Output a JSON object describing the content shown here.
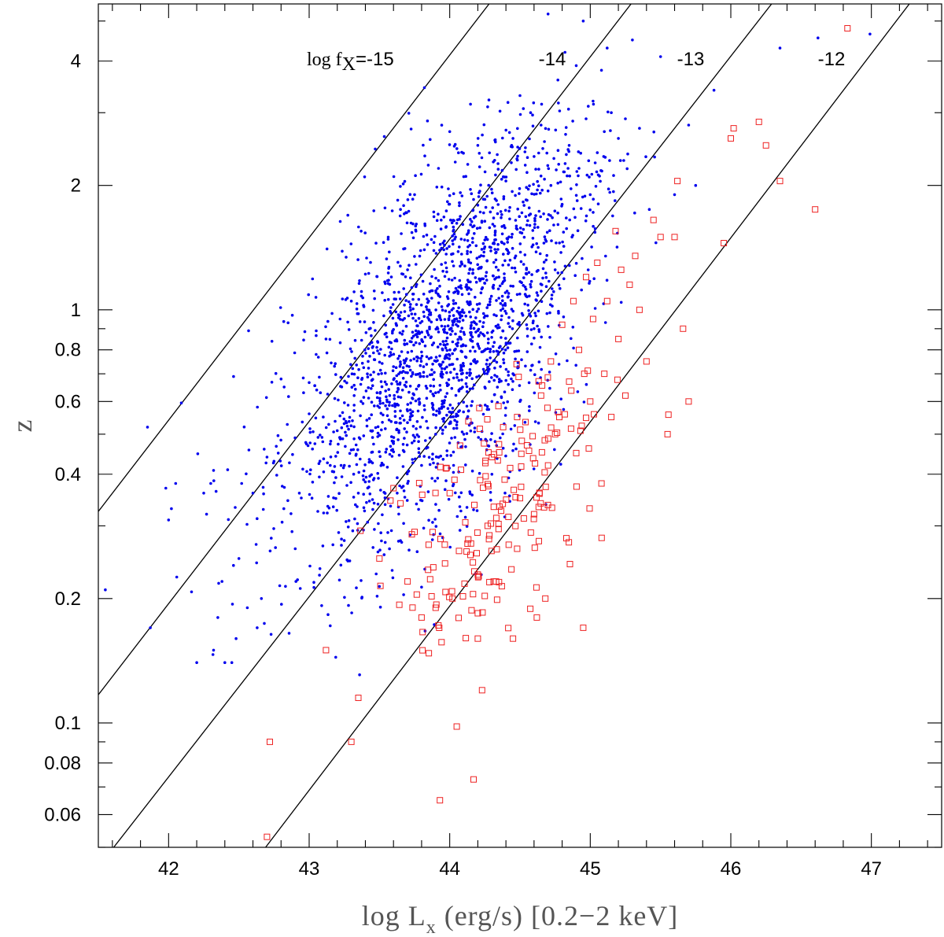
{
  "chart_data": {
    "type": "scatter",
    "title": "",
    "xlabel": {
      "main": "log L",
      "sub": "x",
      "rest": " (erg/s) [0.2−2 keV]"
    },
    "ylabel": "z",
    "xlim": [
      41.5,
      47.5
    ],
    "ylim": [
      0.05,
      5.5
    ],
    "yscale": "log",
    "grid": false,
    "x_ticks": [
      42,
      43,
      44,
      45,
      46,
      47
    ],
    "x_tick_labels": [
      "42",
      "43",
      "44",
      "45",
      "46",
      "47"
    ],
    "y_ticks": [
      0.06,
      0.08,
      0.1,
      0.2,
      0.4,
      0.6,
      0.8,
      1,
      2,
      4
    ],
    "y_tick_labels": [
      "0.06",
      "0.08",
      "0.1",
      "0.2",
      "0.4",
      "0.6",
      "0.8",
      "1",
      "2",
      "4"
    ],
    "flux_lines": [
      {
        "label_prefix": "log f",
        "label_sub": "X",
        "label": "=-15",
        "points": [
          [
            41.5,
            0.325
          ],
          [
            44.28,
            5.5
          ]
        ]
      },
      {
        "label": "-14",
        "points": [
          [
            41.5,
            0.117
          ],
          [
            45.29,
            5.5
          ]
        ]
      },
      {
        "label": "-13",
        "points": [
          [
            41.5,
            0.0448
          ],
          [
            46.29,
            5.5
          ]
        ]
      },
      {
        "label": "-12",
        "points": [
          [
            42.69,
            0.05
          ],
          [
            47.27,
            5.5
          ]
        ]
      }
    ],
    "series": [
      {
        "marker": "dot",
        "color": "#0000ee",
        "note": "points representative of dense cloud (values estimated)",
        "points": [
          [
            41.55,
            0.21
          ],
          [
            41.85,
            0.52
          ],
          [
            41.87,
            0.17
          ],
          [
            41.98,
            0.37
          ],
          [
            42.0,
            0.31
          ],
          [
            42.02,
            0.33
          ],
          [
            42.05,
            0.38
          ],
          [
            42.2,
            0.14
          ],
          [
            42.25,
            0.36
          ],
          [
            42.27,
            0.32
          ],
          [
            42.3,
            0.38
          ],
          [
            42.32,
            0.15
          ],
          [
            42.35,
            0.18
          ],
          [
            42.38,
            0.22
          ],
          [
            42.4,
            0.14
          ],
          [
            42.42,
            0.41
          ],
          [
            42.45,
            0.14
          ],
          [
            42.48,
            0.16
          ],
          [
            42.5,
            0.25
          ],
          [
            42.52,
            0.38
          ],
          [
            42.56,
            0.19
          ],
          [
            42.6,
            0.36
          ],
          [
            42.63,
            0.17
          ],
          [
            42.66,
            0.2
          ],
          [
            42.68,
            0.46
          ],
          [
            42.7,
            0.44
          ],
          [
            42.73,
            0.28
          ],
          [
            42.75,
            0.43
          ],
          [
            42.78,
            0.45
          ],
          [
            42.8,
            0.68
          ],
          [
            42.82,
            0.33
          ],
          [
            42.85,
            0.93
          ],
          [
            42.88,
            0.97
          ],
          [
            42.9,
            0.49
          ],
          [
            42.93,
            0.36
          ],
          [
            42.96,
            0.63
          ],
          [
            43.0,
            0.56
          ],
          [
            43.02,
            0.35
          ],
          [
            43.05,
            0.78
          ],
          [
            43.08,
            0.63
          ],
          [
            43.1,
            0.55
          ],
          [
            43.12,
            0.85
          ],
          [
            43.15,
            0.42
          ],
          [
            43.18,
            0.73
          ],
          [
            43.2,
            0.51
          ],
          [
            43.22,
            0.95
          ],
          [
            43.25,
            0.42
          ],
          [
            43.28,
            0.69
          ],
          [
            43.3,
            1.05
          ],
          [
            43.32,
            0.62
          ],
          [
            43.35,
            0.36
          ],
          [
            43.37,
            1.55
          ],
          [
            43.4,
            1.22
          ],
          [
            43.42,
            0.75
          ],
          [
            43.45,
            0.81
          ],
          [
            43.47,
            2.45
          ],
          [
            43.5,
            0.58
          ],
          [
            43.52,
            1.1
          ],
          [
            43.55,
            0.66
          ],
          [
            43.57,
            1.38
          ],
          [
            43.6,
            0.48
          ],
          [
            43.62,
            0.92
          ],
          [
            43.65,
            1.75
          ],
          [
            43.67,
            0.71
          ],
          [
            43.7,
            1.25
          ],
          [
            43.72,
            0.55
          ],
          [
            43.75,
            1.9
          ],
          [
            43.77,
            0.86
          ],
          [
            43.8,
            0.42
          ],
          [
            43.82,
            3.45
          ],
          [
            43.85,
            1.05
          ],
          [
            43.87,
            1.48
          ],
          [
            43.9,
            0.63
          ],
          [
            43.92,
            2.2
          ],
          [
            43.95,
            0.8
          ],
          [
            43.97,
            1.3
          ],
          [
            44.0,
            2.7
          ],
          [
            44.02,
            0.94
          ],
          [
            44.05,
            1.62
          ],
          [
            44.07,
            0.57
          ],
          [
            44.1,
            2.1
          ],
          [
            44.12,
            1.15
          ],
          [
            44.15,
            0.74
          ],
          [
            44.17,
            1.85
          ],
          [
            44.2,
            2.5
          ],
          [
            44.22,
            0.88
          ],
          [
            44.25,
            1.42
          ],
          [
            44.27,
            3.1
          ],
          [
            44.3,
            0.6
          ],
          [
            44.32,
            2.3
          ],
          [
            44.35,
            1.2
          ],
          [
            44.37,
            1.7
          ],
          [
            44.4,
            2.05
          ],
          [
            44.42,
            0.83
          ],
          [
            44.45,
            2.6
          ],
          [
            44.47,
            1.35
          ],
          [
            44.5,
            3.3
          ],
          [
            44.52,
            0.97
          ],
          [
            44.55,
            2.15
          ],
          [
            44.57,
            1.6
          ],
          [
            44.6,
            2.35
          ],
          [
            44.62,
            1.1
          ],
          [
            44.65,
            2.8
          ],
          [
            44.67,
            1.45
          ],
          [
            44.7,
            5.2
          ],
          [
            44.72,
            2.0
          ],
          [
            44.75,
            1.25
          ],
          [
            44.77,
            3.6
          ],
          [
            44.8,
            1.8
          ],
          [
            44.82,
            4.2
          ],
          [
            44.85,
            2.5
          ],
          [
            44.87,
            1.5
          ],
          [
            44.9,
            3.9
          ],
          [
            44.92,
            2.2
          ],
          [
            44.95,
            5.0
          ],
          [
            44.97,
            2.9
          ],
          [
            45.0,
            1.9
          ],
          [
            45.02,
            3.2
          ],
          [
            45.05,
            2.4
          ],
          [
            45.08,
            3.8
          ],
          [
            45.1,
            2.7
          ],
          [
            45.12,
            4.3
          ],
          [
            45.15,
            3.0
          ],
          [
            45.2,
            2.6
          ],
          [
            45.25,
            2.9
          ],
          [
            45.3,
            4.5
          ],
          [
            45.35,
            2.75
          ],
          [
            45.42,
            1.75
          ],
          [
            45.5,
            4.1
          ],
          [
            45.6,
            1.9
          ],
          [
            45.7,
            2.8
          ],
          [
            45.75,
            2.0
          ],
          [
            45.88,
            3.4
          ],
          [
            46.35,
            4.3
          ],
          [
            46.62,
            4.55
          ],
          [
            46.99,
            4.65
          ],
          [
            44.3,
            0.4
          ],
          [
            44.5,
            0.6
          ],
          [
            44.1,
            0.5
          ],
          [
            43.9,
            0.5
          ],
          [
            44.45,
            0.7
          ],
          [
            44.25,
            0.65
          ],
          [
            43.7,
            0.38
          ],
          [
            44.6,
            0.9
          ]
        ]
      },
      {
        "marker": "open-square",
        "color": "#ee2222",
        "note": "points representative (values estimated)",
        "points": [
          [
            42.7,
            0.053
          ],
          [
            42.72,
            0.09
          ],
          [
            43.12,
            0.15
          ],
          [
            43.3,
            0.09
          ],
          [
            43.35,
            0.115
          ],
          [
            43.5,
            0.25
          ],
          [
            43.6,
            0.37
          ],
          [
            43.65,
            0.34
          ],
          [
            43.7,
            0.22
          ],
          [
            43.75,
            0.29
          ],
          [
            43.8,
            0.18
          ],
          [
            43.85,
            0.27
          ],
          [
            43.9,
            0.19
          ],
          [
            43.93,
            0.065
          ],
          [
            44.0,
            0.36
          ],
          [
            44.02,
            0.2
          ],
          [
            44.05,
            0.098
          ],
          [
            44.08,
            0.41
          ],
          [
            44.12,
            0.26
          ],
          [
            44.17,
            0.073
          ],
          [
            44.2,
            0.16
          ],
          [
            44.23,
            0.12
          ],
          [
            44.27,
            0.3
          ],
          [
            44.3,
            0.44
          ],
          [
            44.33,
            0.22
          ],
          [
            44.38,
            0.52
          ],
          [
            44.42,
            0.27
          ],
          [
            44.45,
            0.16
          ],
          [
            44.48,
            0.55
          ],
          [
            44.5,
            0.35
          ],
          [
            44.55,
            0.47
          ],
          [
            44.6,
            0.32
          ],
          [
            44.62,
            0.18
          ],
          [
            44.65,
            0.62
          ],
          [
            44.68,
            0.2
          ],
          [
            44.7,
            0.42
          ],
          [
            44.72,
            0.75
          ],
          [
            44.75,
            0.5
          ],
          [
            44.78,
            0.55
          ],
          [
            44.8,
            0.92
          ],
          [
            44.83,
            0.28
          ],
          [
            44.85,
            0.67
          ],
          [
            44.88,
            1.05
          ],
          [
            44.9,
            0.45
          ],
          [
            44.92,
            0.8
          ],
          [
            44.95,
            0.17
          ],
          [
            44.97,
            1.2
          ],
          [
            45.0,
            0.6
          ],
          [
            45.02,
            0.95
          ],
          [
            45.05,
            1.3
          ],
          [
            45.08,
            0.38
          ],
          [
            45.1,
            0.7
          ],
          [
            45.12,
            1.05
          ],
          [
            45.15,
            0.55
          ],
          [
            45.18,
            1.55
          ],
          [
            45.2,
            0.85
          ],
          [
            45.22,
            1.25
          ],
          [
            45.25,
            0.62
          ],
          [
            45.28,
            1.15
          ],
          [
            45.32,
            1.35
          ],
          [
            45.35,
            1.0
          ],
          [
            45.4,
            0.75
          ],
          [
            45.45,
            1.65
          ],
          [
            45.5,
            1.5
          ],
          [
            45.55,
            0.5
          ],
          [
            45.6,
            1.5
          ],
          [
            45.62,
            2.05
          ],
          [
            45.66,
            0.9
          ],
          [
            45.7,
            0.6
          ],
          [
            45.95,
            1.45
          ],
          [
            46.0,
            2.6
          ],
          [
            46.02,
            2.75
          ],
          [
            46.2,
            2.85
          ],
          [
            46.25,
            2.5
          ],
          [
            46.35,
            2.05
          ],
          [
            46.6,
            1.75
          ],
          [
            46.83,
            4.8
          ]
        ]
      }
    ]
  }
}
